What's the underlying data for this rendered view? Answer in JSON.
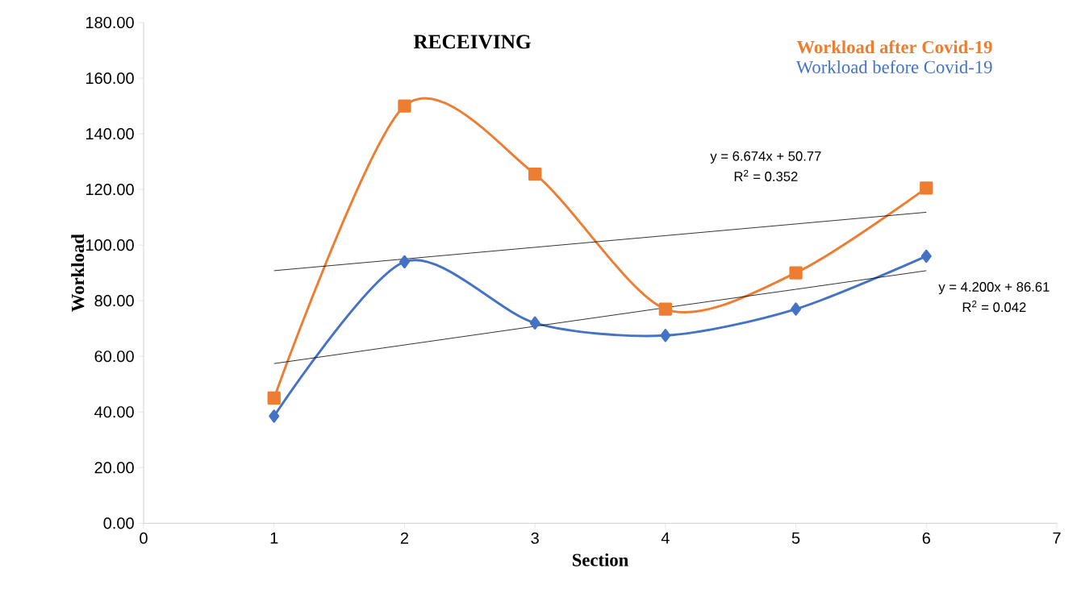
{
  "chart_data": {
    "type": "line",
    "title": "RECEIVING",
    "xlabel": "Section",
    "ylabel": "Workload",
    "x": [
      1,
      2,
      3,
      4,
      5,
      6
    ],
    "series": [
      {
        "name": "Workload after Covid-19",
        "color": "#ed7d31",
        "marker": "square",
        "values": [
          45,
          150,
          125.5,
          77,
          90,
          120.5
        ]
      },
      {
        "name": "Workload before Covid-19",
        "color": "#4472c4",
        "marker": "diamond",
        "values": [
          38.5,
          94,
          72,
          67.5,
          77,
          96
        ]
      },
      {
        "type": "line",
        "color": "#000000",
        "marker": "none",
        "values": [
          90.8,
          95.0,
          99.2,
          103.4,
          107.6,
          111.8
        ]
      },
      {
        "type": "line",
        "color": "#000000",
        "marker": "none",
        "values": [
          57.4,
          64.1,
          70.8,
          77.5,
          84.1,
          90.8
        ]
      }
    ],
    "annotations": [
      "y = 6.674x + 50.77",
      "R$^{2}$ = 0.352",
      "y = 4.200x + 86.61",
      "R$^{2}$ = 0.042"
    ],
    "xlim": [
      0,
      7
    ],
    "xticks": [
      0,
      1,
      2,
      3,
      4,
      5,
      6,
      7
    ],
    "ylim": [
      0,
      180
    ],
    "yticks": [
      {
        "value": 0,
        "label": "0.00"
      },
      {
        "value": 20,
        "label": "20.00"
      },
      {
        "value": 40,
        "label": "40.00"
      },
      {
        "value": 60,
        "label": "60.00"
      },
      {
        "value": 80,
        "label": "80.00"
      },
      {
        "value": 100,
        "label": "100.00"
      },
      {
        "value": 120,
        "label": "120.00"
      },
      {
        "value": 140,
        "label": "140.00"
      },
      {
        "value": 160,
        "label": "160.00"
      },
      {
        "value": 180,
        "label": "180.00"
      }
    ],
    "grid": false,
    "legend": "top right",
    "line_style": "solid"
  }
}
